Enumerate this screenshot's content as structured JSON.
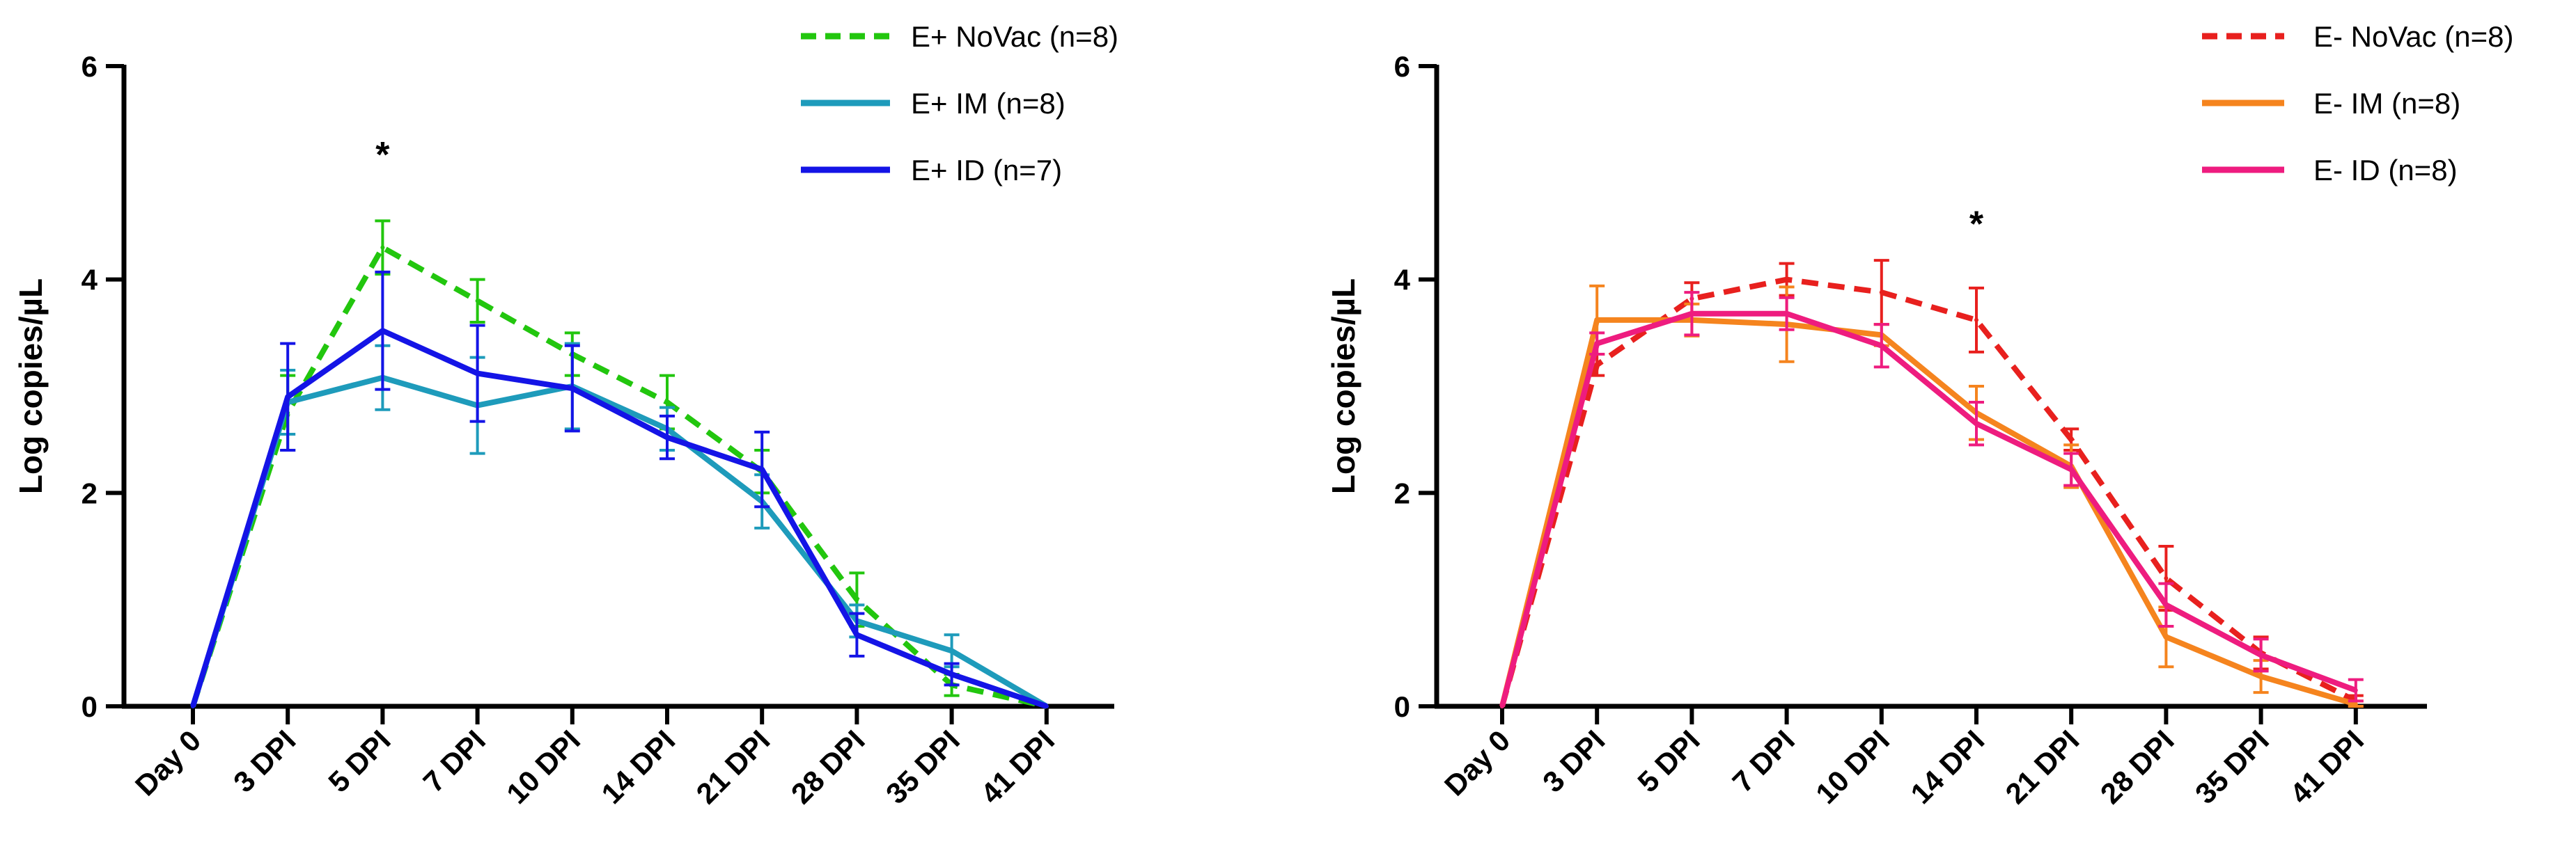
{
  "chart_data": [
    {
      "type": "line",
      "title": "",
      "xlabel": "",
      "ylabel": "Log copies/µL",
      "ylim": [
        0,
        6
      ],
      "yticks": [
        0,
        2,
        4,
        6
      ],
      "categories": [
        "Day 0",
        "3 DPI",
        "5 DPI",
        "7 DPI",
        "10 DPI",
        "14 DPI",
        "21 DPI",
        "28 DPI",
        "35 DPI",
        "41 DPI"
      ],
      "legend_position": "top-right",
      "annotations": [
        {
          "text": "*",
          "category": "5 DPI",
          "y": 5.25
        }
      ],
      "series": [
        {
          "name": "E+ NoVac (n=8)",
          "color": "#22c60e",
          "dash": "dashed",
          "values": [
            0,
            2.75,
            4.3,
            3.8,
            3.3,
            2.85,
            2.2,
            1.0,
            0.2,
            0
          ],
          "errors": [
            0,
            0.35,
            0.25,
            0.2,
            0.2,
            0.25,
            0.2,
            0.25,
            0.1,
            0
          ]
        },
        {
          "name": "E+ IM (n=8)",
          "color": "#1e9bbb",
          "dash": "solid",
          "values": [
            0,
            2.85,
            3.08,
            2.82,
            3.0,
            2.6,
            1.92,
            0.8,
            0.52,
            0
          ],
          "errors": [
            0,
            0.3,
            0.3,
            0.45,
            0.4,
            0.2,
            0.25,
            0.15,
            0.15,
            0
          ]
        },
        {
          "name": "E+ ID (n=7)",
          "color": "#1414e6",
          "dash": "solid",
          "values": [
            0,
            2.9,
            3.52,
            3.12,
            2.98,
            2.52,
            2.22,
            0.67,
            0.3,
            0
          ],
          "errors": [
            0,
            0.5,
            0.55,
            0.45,
            0.4,
            0.2,
            0.35,
            0.2,
            0.1,
            0
          ]
        }
      ]
    },
    {
      "type": "line",
      "title": "",
      "xlabel": "",
      "ylabel": "Log copies/µL",
      "ylim": [
        0,
        6
      ],
      "yticks": [
        0,
        2,
        4,
        6
      ],
      "categories": [
        "Day 0",
        "3 DPI",
        "5 DPI",
        "7 DPI",
        "10 DPI",
        "14 DPI",
        "21 DPI",
        "28 DPI",
        "35 DPI",
        "41 DPI"
      ],
      "legend_position": "top-right",
      "annotations": [
        {
          "text": "*",
          "category": "14 DPI",
          "y": 4.6
        }
      ],
      "series": [
        {
          "name": "E- NoVac (n=8)",
          "color": "#e8201e",
          "dash": "dashed",
          "values": [
            0,
            3.2,
            3.82,
            4.0,
            3.88,
            3.62,
            2.5,
            1.2,
            0.5,
            0.05
          ],
          "errors": [
            0,
            0.1,
            0.15,
            0.15,
            0.3,
            0.3,
            0.1,
            0.3,
            0.15,
            0.05
          ]
        },
        {
          "name": "E- IM (n=8)",
          "color": "#f5841e",
          "dash": "solid",
          "values": [
            0,
            3.62,
            3.62,
            3.58,
            3.48,
            2.75,
            2.25,
            0.65,
            0.28,
            0.02
          ],
          "errors": [
            0,
            0.32,
            0.15,
            0.35,
            0.1,
            0.25,
            0.2,
            0.28,
            0.15,
            0.03
          ]
        },
        {
          "name": "E- ID (n=8)",
          "color": "#ee1c7f",
          "dash": "solid",
          "values": [
            0,
            3.4,
            3.68,
            3.68,
            3.38,
            2.65,
            2.22,
            0.95,
            0.48,
            0.15
          ],
          "errors": [
            0,
            0.1,
            0.2,
            0.15,
            0.2,
            0.2,
            0.15,
            0.2,
            0.15,
            0.1
          ]
        }
      ]
    }
  ]
}
